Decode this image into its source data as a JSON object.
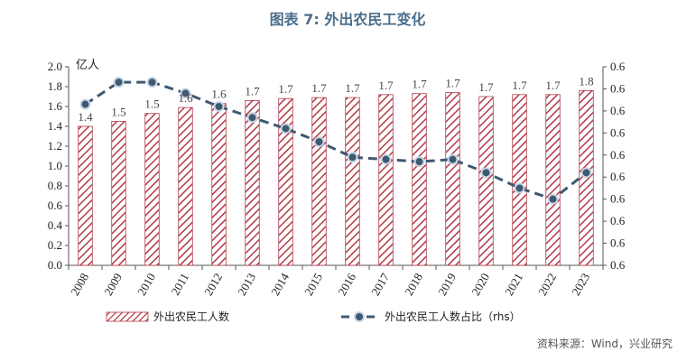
{
  "chart_data": {
    "type": "bar",
    "title": "图表 7:  外出农民工变化",
    "left_axis_unit": "亿人",
    "categories": [
      "2008",
      "2009",
      "2010",
      "2011",
      "2012",
      "2013",
      "2014",
      "2015",
      "2016",
      "2017",
      "2018",
      "2019",
      "2020",
      "2021",
      "2022",
      "2023"
    ],
    "ylim": [
      0,
      2.0
    ],
    "yticks": [
      "0.0",
      "0.2",
      "0.4",
      "0.6",
      "0.8",
      "1.0",
      "1.2",
      "1.4",
      "1.6",
      "1.8",
      "2.0"
    ],
    "y2ticks": [
      "0.6",
      "0.6",
      "0.6",
      "0.6",
      "0.6",
      "0.6",
      "0.6",
      "0.6",
      "0.6",
      "0.6"
    ],
    "series": [
      {
        "name": "外出农民工人数",
        "type": "bar",
        "axis": "left",
        "values": [
          1.4,
          1.45,
          1.53,
          1.59,
          1.63,
          1.66,
          1.68,
          1.69,
          1.69,
          1.72,
          1.73,
          1.74,
          1.7,
          1.72,
          1.72,
          1.76
        ],
        "labels": [
          "1.4",
          "1.5",
          "1.5",
          "1.6",
          "1.6",
          "1.7",
          "1.7",
          "1.7",
          "1.7",
          "1.7",
          "1.7",
          "1.7",
          "1.7",
          "1.7",
          "1.7",
          "1.8"
        ],
        "color": "#b23a48"
      },
      {
        "name": "外出农民工人数占比（rhs）",
        "type": "line",
        "axis": "right",
        "values": [
          0.628,
          0.638,
          0.638,
          0.633,
          0.627,
          0.622,
          0.617,
          0.611,
          0.604,
          0.603,
          0.602,
          0.603,
          0.597,
          0.59,
          0.585,
          0.597
        ],
        "color": "#3f5971"
      }
    ],
    "y2lim": [
      0.555,
      0.645
    ],
    "grid": false,
    "legend_position": "bottom"
  },
  "source": "资料来源：Wind，兴业研究"
}
